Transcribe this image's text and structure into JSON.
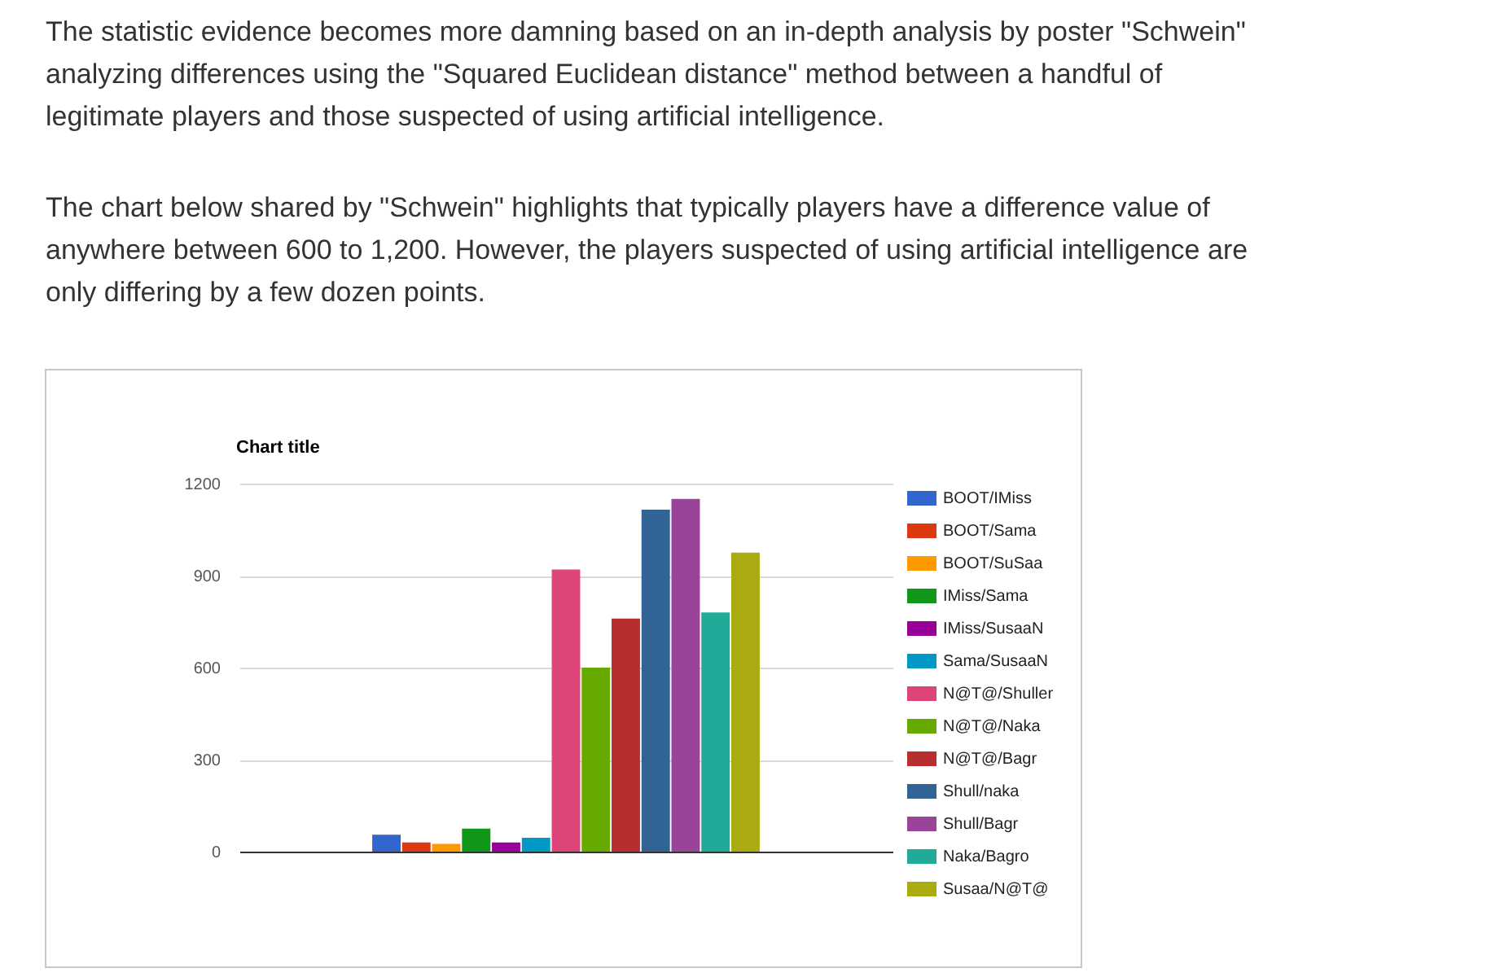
{
  "chart_data": {
    "type": "bar",
    "title": "Chart title",
    "annotations": [
      "The statistic evidence becomes more damning based on an in-depth analysis by poster \"Schwein\" analyzing differences using the \"Squared Euclidean distance\" method between a handful of legitimate players and those suspected of using artificial intelligence.",
      "The chart below shared by \"Schwein\" highlights that typically players have a difference value of anywhere between 600 to 1,200. However, the players suspected of using artificial intelligence are only differing by a few dozen points."
    ],
    "categories": [
      null
    ],
    "series": [
      {
        "name": "BOOT/IMiss",
        "color": "#3366cc",
        "values": [
          55
        ]
      },
      {
        "name": "BOOT/Sama",
        "color": "#dc3912",
        "values": [
          30
        ]
      },
      {
        "name": "BOOT/SuSaa",
        "color": "#ff9900",
        "values": [
          25
        ]
      },
      {
        "name": "IMiss/Sama",
        "color": "#109618",
        "values": [
          75
        ]
      },
      {
        "name": "IMiss/SusaaN",
        "color": "#990099",
        "values": [
          30
        ]
      },
      {
        "name": "Sama/SusaaN",
        "color": "#0099c6",
        "values": [
          45
        ]
      },
      {
        "name": "N@T@/Shuller",
        "color": "#dd4477",
        "values": [
          920
        ]
      },
      {
        "name": "N@T@/Naka",
        "color": "#66aa00",
        "values": [
          600
        ]
      },
      {
        "name": "N@T@/Bagr",
        "color": "#b82e2e",
        "values": [
          760
        ]
      },
      {
        "name": "Shull/naka",
        "color": "#316395",
        "values": [
          1115
        ]
      },
      {
        "name": "Shull/Bagr",
        "color": "#994499",
        "values": [
          1150
        ]
      },
      {
        "name": "Naka/Bagro",
        "color": "#22aa99",
        "values": [
          780
        ]
      },
      {
        "name": "Susaa/N@T@",
        "color": "#aaaa11",
        "values": [
          975
        ]
      }
    ],
    "ylim": [
      0,
      1200
    ],
    "yticks": [
      0,
      300,
      600,
      900,
      1200
    ],
    "grid": "y",
    "legend": "right",
    "tick_labels": "y"
  }
}
